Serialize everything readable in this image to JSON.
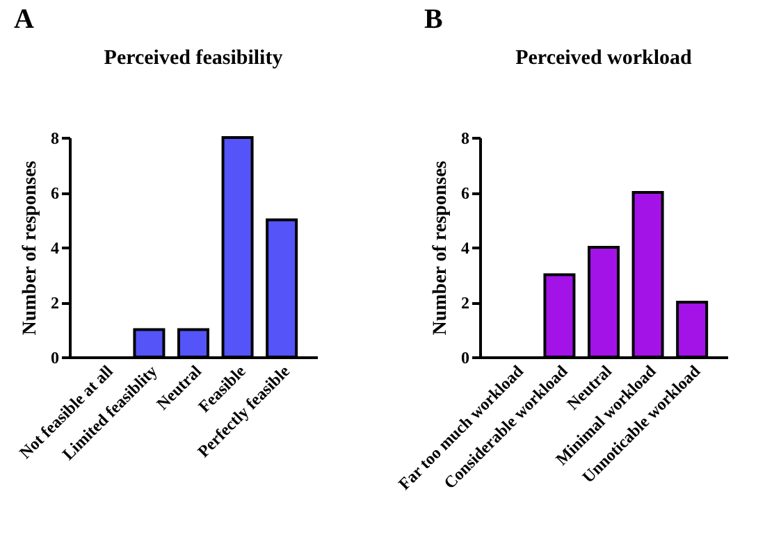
{
  "chart_data": [
    {
      "type": "bar",
      "title": "Perceived feasibility",
      "annotations": [
        "A"
      ],
      "ylabel": "Number of responses",
      "categories": [
        "Not feasible at all",
        "Limited feasiblity",
        "Neutral",
        "Feasible",
        "Perfectly feasible"
      ],
      "values": [
        0,
        1,
        1,
        8,
        5
      ],
      "color": "#5454f8",
      "ylim": [
        0,
        8
      ],
      "yticks": [
        0,
        2,
        4,
        6,
        8
      ],
      "grid": false
    },
    {
      "type": "bar",
      "title": "Perceived workload",
      "annotations": [
        "B"
      ],
      "ylabel": "Number of responses",
      "categories": [
        "Far too much workload",
        "Considerable workload",
        "Neutral",
        "Minimal workload",
        "Unnoticable workload"
      ],
      "values": [
        0,
        3,
        4,
        6,
        2
      ],
      "color": "#a313e8",
      "ylim": [
        0,
        8
      ],
      "yticks": [
        0,
        2,
        4,
        6,
        8
      ],
      "grid": false
    }
  ]
}
